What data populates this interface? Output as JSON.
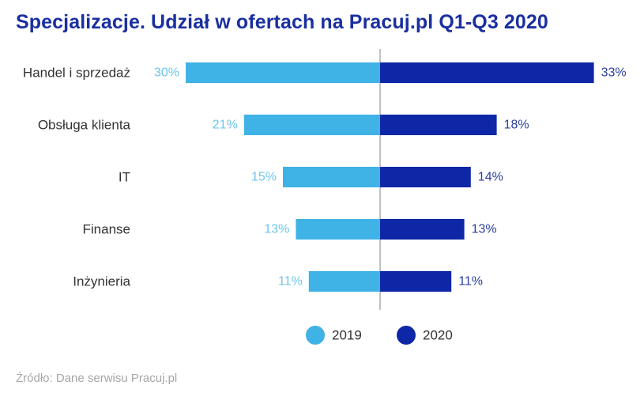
{
  "chart_data": {
    "type": "bar",
    "orientation": "horizontal-diverging",
    "title": "Specjalizacje. Udział w ofertach na Pracuj.pl Q1-Q3 2020",
    "categories": [
      "Handel i sprzedaż",
      "Obsługa klienta",
      "IT",
      "Finanse",
      "Inżynieria"
    ],
    "series": [
      {
        "name": "2019",
        "values": [
          30,
          21,
          15,
          13,
          11
        ],
        "labels": [
          "30%",
          "21%",
          "15%",
          "13%",
          "11%"
        ],
        "color": "#3fb2e6",
        "label_color": "#6cc6ee",
        "direction": "left"
      },
      {
        "name": "2020",
        "values": [
          33,
          18,
          14,
          13,
          11
        ],
        "labels": [
          "33%",
          "18%",
          "14%",
          "13%",
          "11%"
        ],
        "color": "#0d27a6",
        "label_color": "#2c3f9e",
        "direction": "right"
      }
    ],
    "unit": "%",
    "grid": false,
    "legend_position": "bottom-center"
  },
  "source": "Źródło: Dane serwisu Pracuj.pl"
}
